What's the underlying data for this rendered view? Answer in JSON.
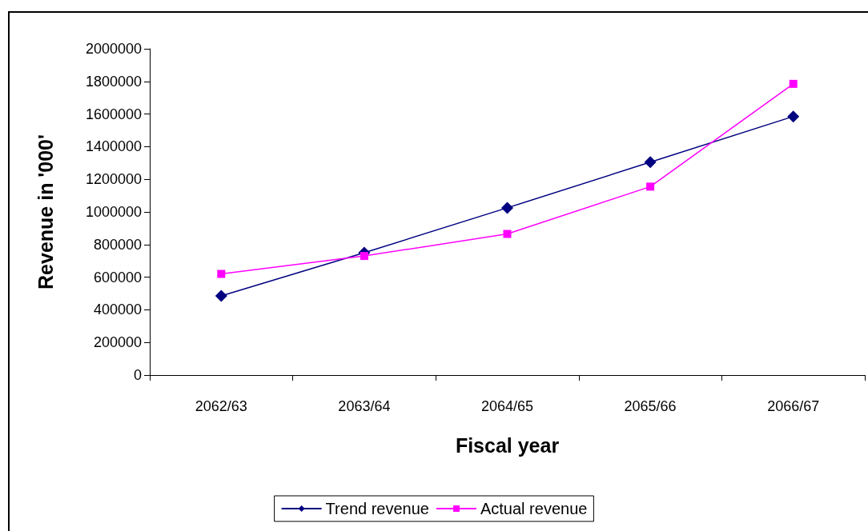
{
  "chart_data": {
    "type": "line",
    "xlabel": "Fiscal year",
    "ylabel": "Revenue in '000'",
    "categories": [
      "2062/63",
      "2063/64",
      "2064/65",
      "2065/66",
      "2066/67"
    ],
    "series": [
      {
        "name": "Trend revenue",
        "color": "#000080",
        "marker": "diamond",
        "values": [
          485000,
          750000,
          1025000,
          1305000,
          1585000
        ]
      },
      {
        "name": "Actual revenue",
        "color": "#ff00ff",
        "marker": "square",
        "values": [
          620000,
          730000,
          865000,
          1155000,
          1785000
        ]
      }
    ],
    "ylim": [
      0,
      2000000
    ],
    "yticks": [
      0,
      200000,
      400000,
      600000,
      800000,
      1000000,
      1200000,
      1400000,
      1600000,
      1800000,
      2000000
    ],
    "grid": false,
    "legend": "bottom",
    "line_style": "solid"
  }
}
